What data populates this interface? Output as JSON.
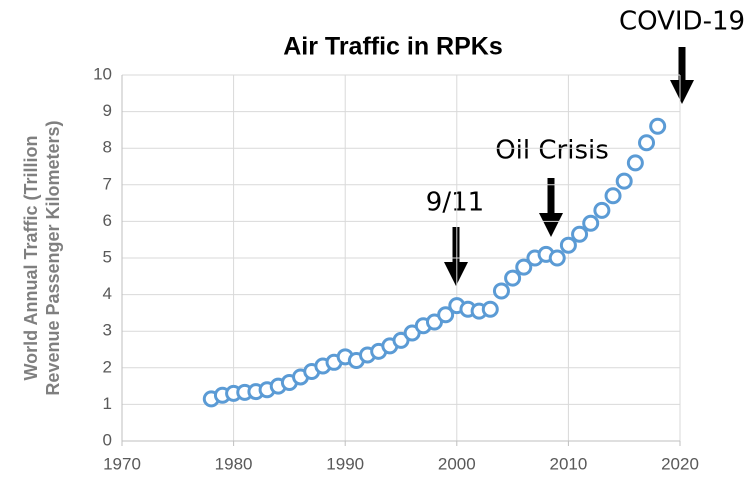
{
  "chart_data": {
    "type": "scatter",
    "title": "Air Traffic in RPKs",
    "ylabel": [
      "World Annual Traffic (Trillion",
      "Revenue Passenger Kilometers)"
    ],
    "x": [
      1978,
      1979,
      1980,
      1981,
      1982,
      1983,
      1984,
      1985,
      1986,
      1987,
      1988,
      1989,
      1990,
      1991,
      1992,
      1993,
      1994,
      1995,
      1996,
      1997,
      1998,
      1999,
      2000,
      2001,
      2002,
      2003,
      2004,
      2005,
      2006,
      2007,
      2008,
      2009,
      2010,
      2011,
      2012,
      2013,
      2014,
      2015,
      2016,
      2017,
      2018
    ],
    "values": [
      1.15,
      1.25,
      1.3,
      1.33,
      1.35,
      1.4,
      1.5,
      1.6,
      1.75,
      1.9,
      2.05,
      2.15,
      2.3,
      2.2,
      2.35,
      2.45,
      2.6,
      2.75,
      2.95,
      3.15,
      3.25,
      3.45,
      3.7,
      3.6,
      3.55,
      3.6,
      4.1,
      4.45,
      4.75,
      5.0,
      5.1,
      5.0,
      5.35,
      5.65,
      5.95,
      6.3,
      6.7,
      7.1,
      7.6,
      8.15,
      8.6
    ],
    "color": "#5b9bd5",
    "xlim": [
      1970,
      2020
    ],
    "xticks": [
      1970,
      1980,
      1990,
      2000,
      2010,
      2020
    ],
    "ylim": [
      0,
      10
    ],
    "yticks": [
      0,
      1,
      2,
      3,
      4,
      5,
      6,
      7,
      8,
      9,
      10
    ],
    "grid": true,
    "annotations": [
      {
        "text": "9/11"
      },
      {
        "text": "Oil Crisis"
      },
      {
        "text": "COVID-19"
      }
    ]
  }
}
